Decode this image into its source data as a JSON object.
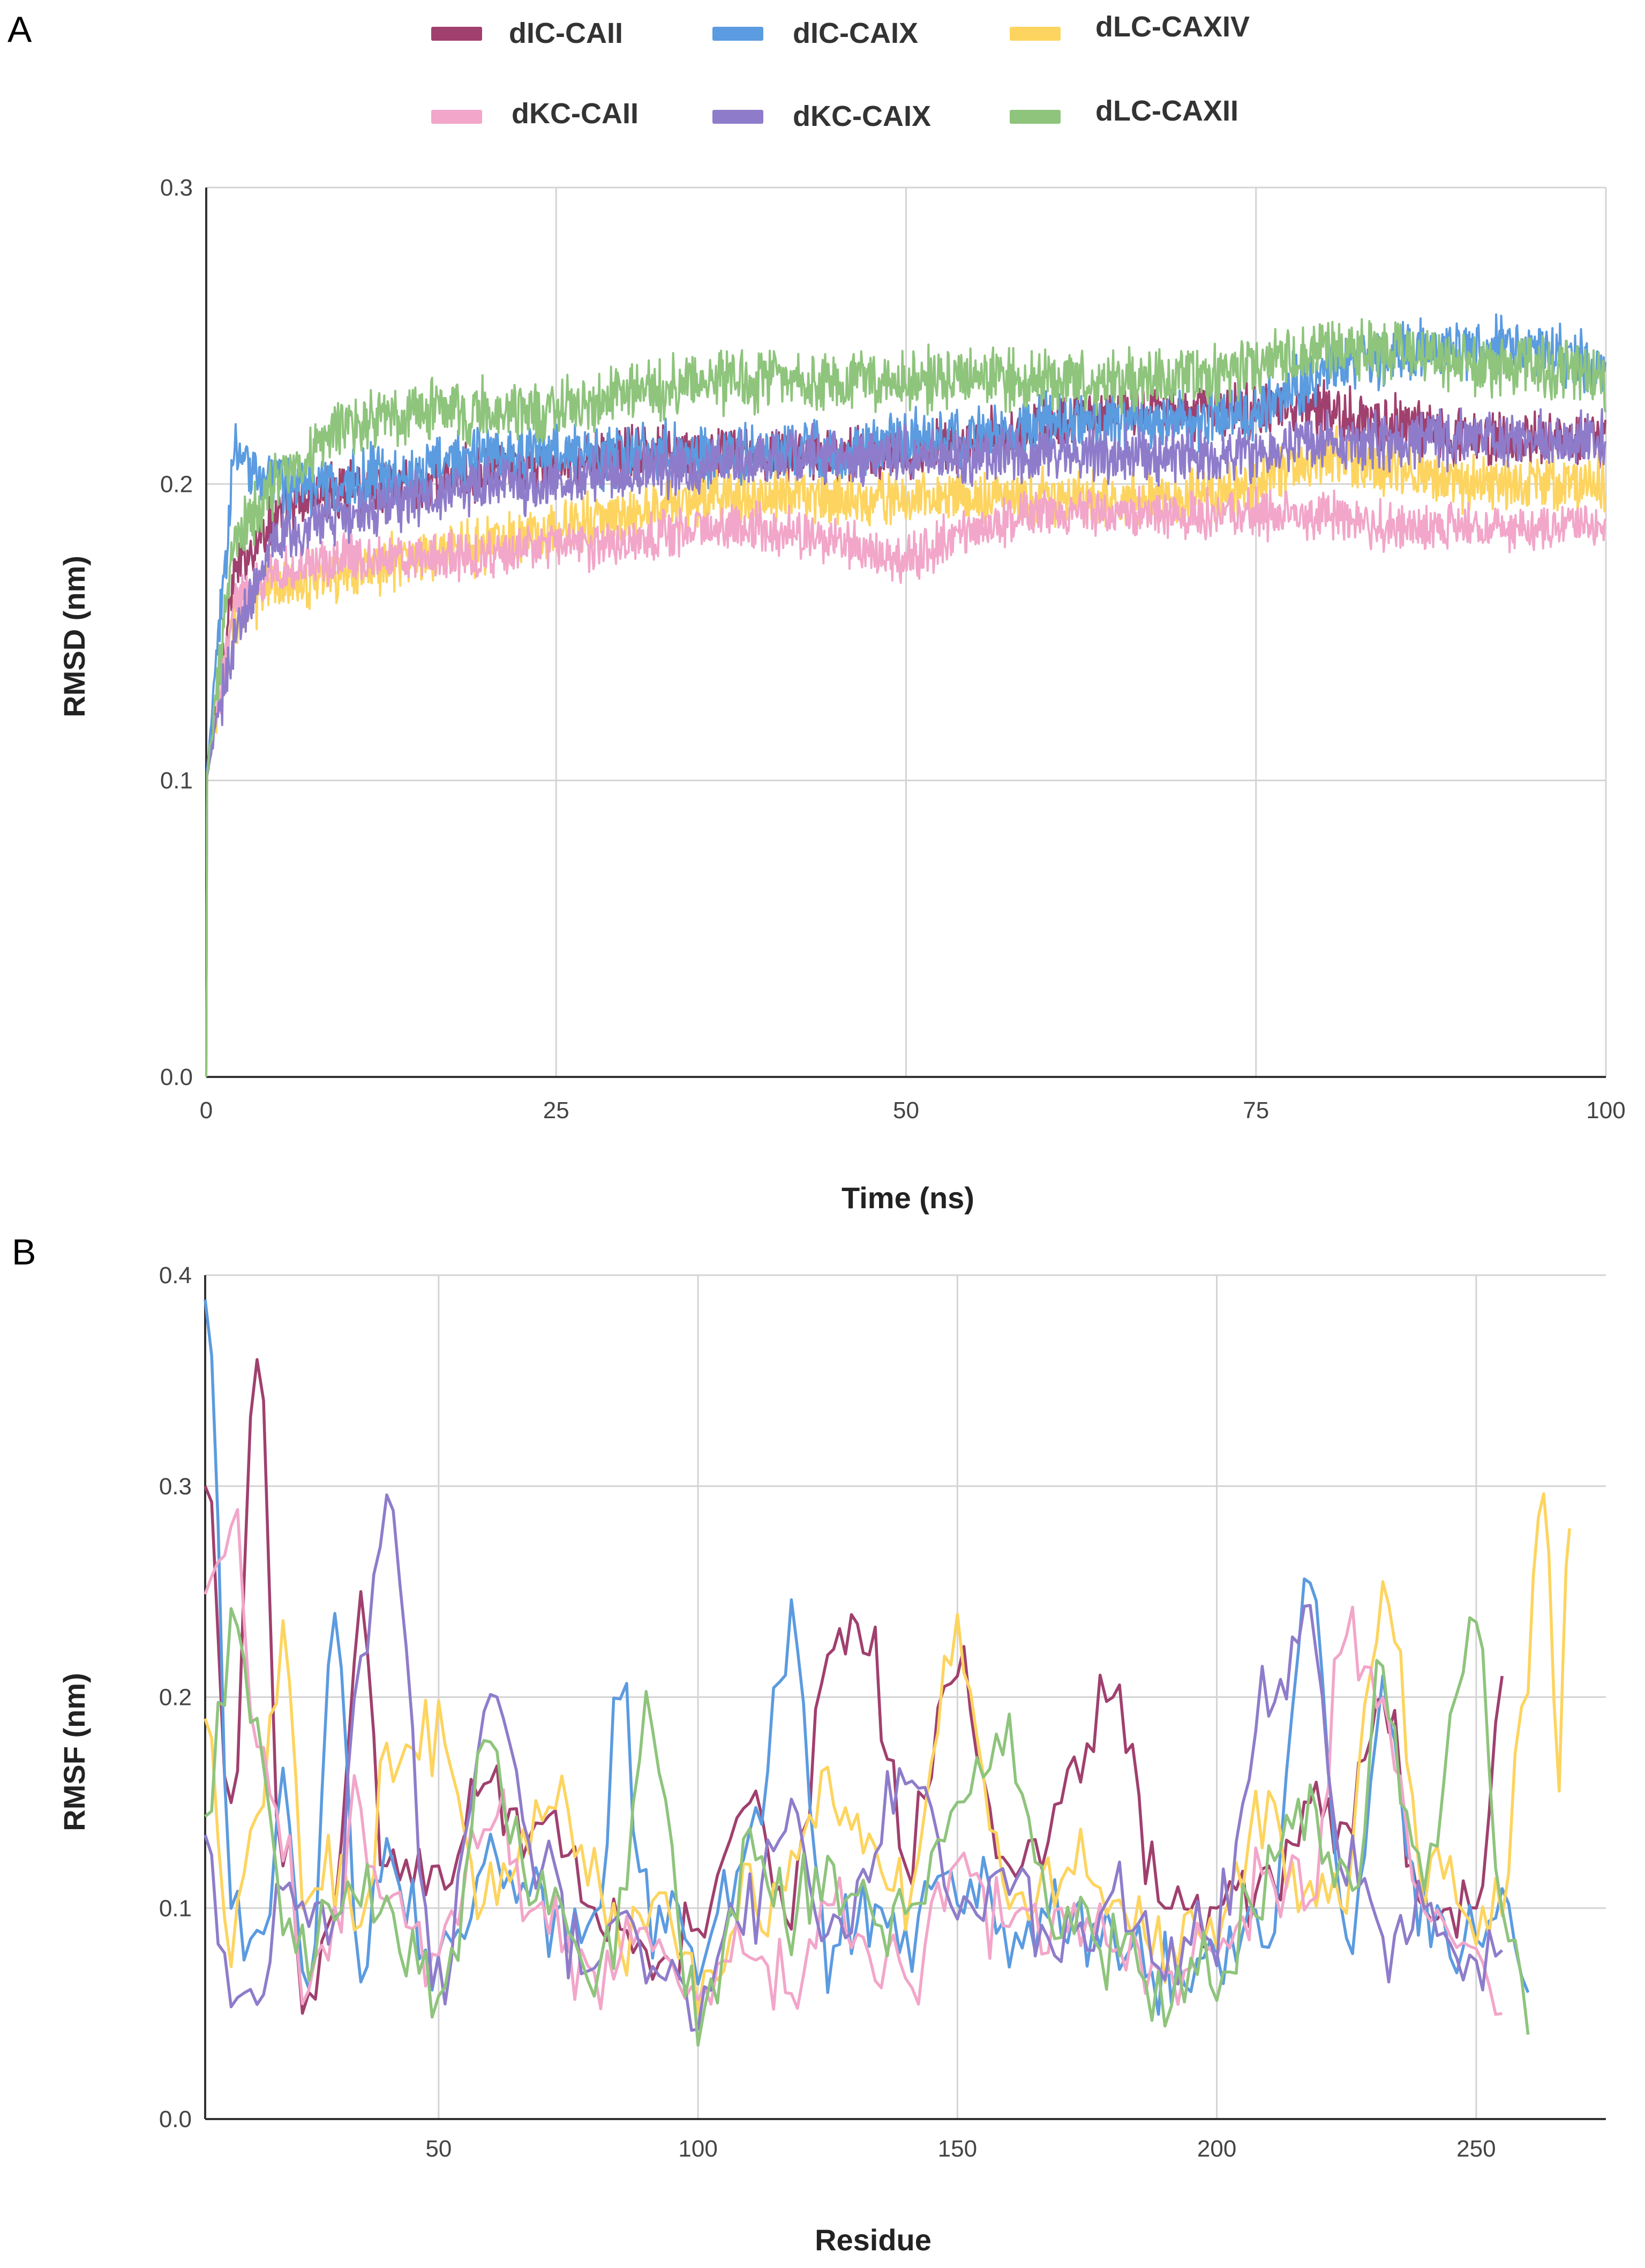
{
  "figure": {
    "panel_a_letter": "A",
    "panel_b_letter": "B"
  },
  "legend": [
    {
      "name": "dIC-CAII",
      "color": "#a0406e"
    },
    {
      "name": "dIC-CAIX",
      "color": "#5b9be0"
    },
    {
      "name": "dLC-CAXIV",
      "color": "#fdd45f"
    },
    {
      "name": "dKC-CAII",
      "color": "#f2a6c9"
    },
    {
      "name": "dKC-CAIX",
      "color": "#8e7ccb"
    },
    {
      "name": "dLC-CAXII",
      "color": "#8ec47c"
    }
  ],
  "chart_data": [
    {
      "type": "line",
      "panel": "A",
      "title": "",
      "xlabel": "Time (ns)",
      "ylabel": "RMSD (nm)",
      "xlim": [
        0,
        100
      ],
      "ylim": [
        0,
        0.3
      ],
      "xticks": [
        0,
        25,
        50,
        75,
        100
      ],
      "yticks": [
        0.0,
        0.1,
        0.2,
        0.3
      ],
      "xtick_labels": [
        "0",
        "25",
        "50",
        "75",
        "100"
      ],
      "ytick_labels": [
        "0.0",
        "0.1",
        "0.2",
        "0.3"
      ],
      "grid": true,
      "legend_position": "top",
      "x": [
        0,
        2,
        5,
        10,
        15,
        20,
        25,
        30,
        35,
        40,
        45,
        50,
        55,
        60,
        65,
        70,
        75,
        80,
        85,
        90,
        95,
        100
      ],
      "series": [
        {
          "name": "dIC-CAII",
          "color": "#a0406e",
          "noise": 0.008,
          "values": [
            0.1,
            0.17,
            0.19,
            0.2,
            0.2,
            0.205,
            0.205,
            0.21,
            0.21,
            0.21,
            0.21,
            0.21,
            0.215,
            0.22,
            0.225,
            0.225,
            0.225,
            0.225,
            0.22,
            0.215,
            0.215,
            0.215
          ]
        },
        {
          "name": "dIC-CAIX",
          "color": "#5b9be0",
          "noise": 0.009,
          "values": [
            0.1,
            0.21,
            0.2,
            0.2,
            0.205,
            0.21,
            0.21,
            0.21,
            0.21,
            0.21,
            0.21,
            0.215,
            0.215,
            0.22,
            0.22,
            0.22,
            0.225,
            0.24,
            0.245,
            0.245,
            0.245,
            0.24
          ]
        },
        {
          "name": "dLC-CAXIV",
          "color": "#fdd45f",
          "noise": 0.008,
          "values": [
            0.1,
            0.155,
            0.165,
            0.17,
            0.175,
            0.18,
            0.185,
            0.19,
            0.195,
            0.195,
            0.195,
            0.195,
            0.195,
            0.195,
            0.195,
            0.195,
            0.2,
            0.21,
            0.205,
            0.2,
            0.2,
            0.2
          ]
        },
        {
          "name": "dKC-CAII",
          "color": "#f2a6c9",
          "noise": 0.007,
          "values": [
            0.1,
            0.16,
            0.17,
            0.175,
            0.175,
            0.175,
            0.18,
            0.18,
            0.185,
            0.185,
            0.18,
            0.175,
            0.185,
            0.19,
            0.19,
            0.19,
            0.19,
            0.19,
            0.185,
            0.185,
            0.185,
            0.185
          ]
        },
        {
          "name": "dKC-CAIX",
          "color": "#8e7ccb",
          "noise": 0.008,
          "values": [
            0.1,
            0.15,
            0.18,
            0.19,
            0.195,
            0.2,
            0.2,
            0.205,
            0.205,
            0.21,
            0.21,
            0.21,
            0.21,
            0.21,
            0.21,
            0.21,
            0.21,
            0.215,
            0.215,
            0.215,
            0.215,
            0.215
          ]
        },
        {
          "name": "dLC-CAXII",
          "color": "#8ec47c",
          "noise": 0.009,
          "values": [
            0.1,
            0.18,
            0.2,
            0.22,
            0.225,
            0.225,
            0.225,
            0.23,
            0.235,
            0.235,
            0.235,
            0.235,
            0.235,
            0.235,
            0.235,
            0.235,
            0.24,
            0.245,
            0.245,
            0.24,
            0.24,
            0.235
          ]
        }
      ]
    },
    {
      "type": "line",
      "panel": "B",
      "title": "",
      "xlabel": "Residue",
      "ylabel": "RMSF (nm)",
      "xlim": [
        5,
        275
      ],
      "ylim": [
        0,
        0.4
      ],
      "xticks": [
        50,
        100,
        150,
        200,
        250
      ],
      "yticks": [
        0.0,
        0.1,
        0.2,
        0.3,
        0.4
      ],
      "xtick_labels": [
        "50",
        "100",
        "150",
        "200",
        "250"
      ],
      "ytick_labels": [
        "0.0",
        "0.1",
        "0.2",
        "0.3",
        "0.4"
      ],
      "grid": true,
      "x": [
        5,
        10,
        15,
        20,
        25,
        30,
        35,
        40,
        50,
        60,
        70,
        80,
        85,
        90,
        100,
        110,
        118,
        125,
        133,
        140,
        150,
        160,
        170,
        180,
        190,
        200,
        210,
        218,
        225,
        232,
        240,
        250,
        255,
        260,
        263,
        266,
        268
      ],
      "series": [
        {
          "name": "dIC-CAII",
          "color": "#a0406e",
          "values": [
            0.3,
            0.15,
            0.36,
            0.12,
            0.06,
            0.1,
            0.25,
            0.12,
            0.12,
            0.16,
            0.14,
            0.1,
            0.09,
            0.08,
            0.09,
            0.15,
            0.09,
            0.22,
            0.22,
            0.12,
            0.21,
            0.12,
            0.15,
            0.2,
            0.1,
            0.1,
            0.12,
            0.15,
            0.14,
            0.2,
            0.1,
            0.1,
            0.21,
            null,
            null,
            null,
            null
          ]
        },
        {
          "name": "dIC-CAIX",
          "color": "#5b9be0",
          "values": [
            0.4,
            0.12,
            0.08,
            0.15,
            0.06,
            0.24,
            0.07,
            0.12,
            0.07,
            0.12,
            0.1,
            0.08,
            0.22,
            0.1,
            0.08,
            0.12,
            0.23,
            0.08,
            0.1,
            0.09,
            0.12,
            0.08,
            0.1,
            0.08,
            0.07,
            0.08,
            0.1,
            0.25,
            0.08,
            0.2,
            0.1,
            0.08,
            0.1,
            0.06,
            null,
            null,
            null
          ]
        },
        {
          "name": "dLC-CAXIV",
          "color": "#fdd45f",
          "values": [
            0.2,
            0.08,
            0.15,
            0.22,
            0.1,
            0.12,
            0.08,
            0.16,
            0.18,
            0.1,
            0.15,
            0.12,
            0.08,
            0.1,
            0.07,
            0.1,
            0.12,
            0.15,
            0.13,
            0.1,
            0.22,
            0.1,
            0.12,
            0.1,
            0.08,
            0.09,
            0.15,
            0.1,
            0.12,
            0.25,
            0.12,
            0.1,
            0.1,
            0.22,
            0.3,
            0.16,
            0.28
          ]
        },
        {
          "name": "dKC-CAII",
          "color": "#f2a6c9",
          "values": [
            0.25,
            0.28,
            0.18,
            0.12,
            0.06,
            0.1,
            0.15,
            0.1,
            0.08,
            0.14,
            0.1,
            0.07,
            0.08,
            0.09,
            0.06,
            0.08,
            0.06,
            0.1,
            0.08,
            0.07,
            0.12,
            0.09,
            0.1,
            0.08,
            0.07,
            0.08,
            0.12,
            0.1,
            0.23,
            0.2,
            0.1,
            0.08,
            0.05,
            null,
            null,
            null,
            null
          ]
        },
        {
          "name": "dKC-CAIX",
          "color": "#8e7ccb",
          "values": [
            0.13,
            0.07,
            0.06,
            0.12,
            0.1,
            0.08,
            0.22,
            0.28,
            0.07,
            0.19,
            0.12,
            0.06,
            0.1,
            0.08,
            0.06,
            0.1,
            0.14,
            0.09,
            0.12,
            0.17,
            0.1,
            0.12,
            0.08,
            0.1,
            0.07,
            0.09,
            0.2,
            0.23,
            0.12,
            0.08,
            0.1,
            0.06,
            0.08,
            null,
            null,
            null,
            null
          ]
        },
        {
          "name": "dLC-CAXII",
          "color": "#8ec47c",
          "values": [
            0.14,
            0.23,
            0.18,
            0.1,
            0.08,
            0.1,
            0.12,
            0.09,
            0.06,
            0.17,
            0.1,
            0.08,
            0.09,
            0.19,
            0.05,
            0.12,
            0.1,
            0.12,
            0.09,
            0.1,
            0.15,
            0.17,
            0.1,
            0.08,
            0.06,
            0.07,
            0.12,
            0.15,
            0.1,
            0.2,
            0.12,
            0.24,
            0.1,
            0.04,
            null,
            null,
            null
          ]
        }
      ]
    }
  ]
}
